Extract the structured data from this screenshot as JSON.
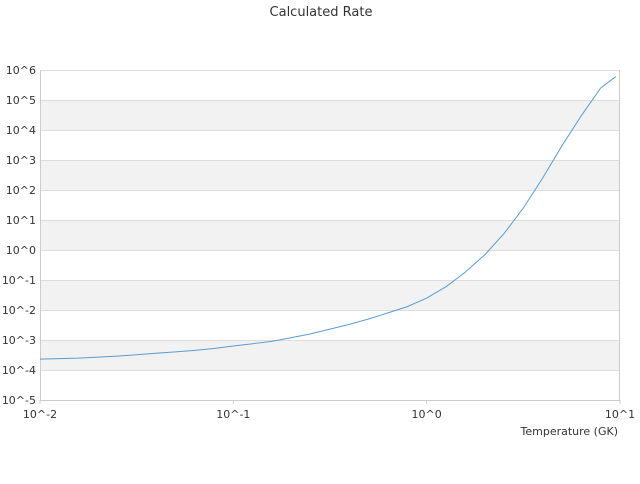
{
  "chart_data": {
    "type": "line",
    "title": "Calculated Rate",
    "xlabel": "Temperature (GK)",
    "ylabel": "",
    "x_scale": "log",
    "y_scale": "log",
    "xlim": [
      0.01,
      10
    ],
    "ylim": [
      1e-05,
      1000000
    ],
    "grid": "alternating horizontal bands",
    "x_ticks": [
      {
        "value": 0.01,
        "label": "10^-2"
      },
      {
        "value": 0.1,
        "label": "10^-1"
      },
      {
        "value": 1,
        "label": "10^0"
      },
      {
        "value": 10,
        "label": "10^1"
      }
    ],
    "y_ticks": [
      {
        "value": 1e-05,
        "label": "10^-5"
      },
      {
        "value": 0.0001,
        "label": "10^-4"
      },
      {
        "value": 0.001,
        "label": "10^-3"
      },
      {
        "value": 0.01,
        "label": "10^-2"
      },
      {
        "value": 0.1,
        "label": "10^-1"
      },
      {
        "value": 1,
        "label": "10^0"
      },
      {
        "value": 10,
        "label": "10^1"
      },
      {
        "value": 100,
        "label": "10^2"
      },
      {
        "value": 1000,
        "label": "10^3"
      },
      {
        "value": 10000,
        "label": "10^4"
      },
      {
        "value": 100000,
        "label": "10^5"
      },
      {
        "value": 1000000,
        "label": "10^6"
      }
    ],
    "series": [
      {
        "color": "#5b9bd5",
        "x": [
          0.01,
          0.0126,
          0.0158,
          0.02,
          0.0251,
          0.0316,
          0.0398,
          0.0501,
          0.0631,
          0.0794,
          0.1,
          0.126,
          0.158,
          0.2,
          0.251,
          0.316,
          0.398,
          0.501,
          0.631,
          0.794,
          1,
          1.26,
          1.58,
          2,
          2.51,
          3.16,
          3.98,
          5.01,
          6.31,
          7.94,
          9.5
        ],
        "y": [
          0.00023,
          0.00024,
          0.00025,
          0.00027,
          0.00029,
          0.00032,
          0.00036,
          0.0004,
          0.00045,
          0.00052,
          0.00063,
          0.00075,
          0.0009,
          0.0012,
          0.0016,
          0.0023,
          0.0033,
          0.005,
          0.008,
          0.013,
          0.025,
          0.06,
          0.18,
          0.7,
          3.5,
          25,
          250,
          3000,
          30000,
          250000,
          600000
        ]
      }
    ]
  },
  "colors": {
    "line": "#5b9bd5",
    "band": "#f2f2f2",
    "axis": "#cccccc",
    "text": "#333333"
  }
}
